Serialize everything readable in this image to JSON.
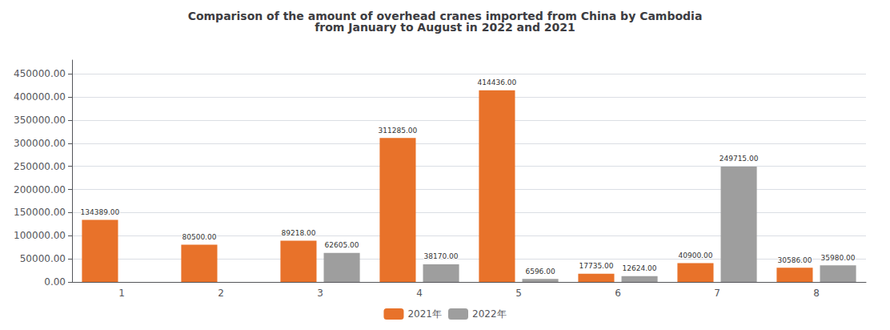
{
  "chart_data": {
    "type": "bar",
    "title": "Comparison of the amount of overhead cranes imported from China by Cambodia\nfrom January to August in 2022 and 2021",
    "categories": [
      "1",
      "2",
      "3",
      "4",
      "5",
      "6",
      "7",
      "8"
    ],
    "series": [
      {
        "name": "2021年",
        "color": "#E8722A",
        "values": [
          134389.0,
          80500.0,
          89218.0,
          311285.0,
          414436.0,
          17735.0,
          40900.0,
          30586.0
        ],
        "value_labels": [
          "134389.00",
          "80500.00",
          "89218.00",
          "311285.00",
          "414436.00",
          "17735.00",
          "40900.00",
          "30586.00"
        ]
      },
      {
        "name": "2022年",
        "color": "#9E9E9E",
        "values": [
          0,
          0,
          62605.0,
          38170.0,
          6596.0,
          12624.0,
          249715.0,
          35980.0
        ],
        "value_labels": [
          null,
          null,
          "62605.00",
          "38170.00",
          "6596.00",
          "12624.00",
          "249715.00",
          "35980.00"
        ]
      }
    ],
    "ylim": [
      0,
      480000
    ],
    "yticks": [
      {
        "value": 0,
        "label": "0.00"
      },
      {
        "value": 50000,
        "label": "50000.00"
      },
      {
        "value": 100000,
        "label": "100000.00"
      },
      {
        "value": 150000,
        "label": "150000.00"
      },
      {
        "value": 200000,
        "label": "200000.00"
      },
      {
        "value": 250000,
        "label": "250000.00"
      },
      {
        "value": 300000,
        "label": "300000.00"
      },
      {
        "value": 350000,
        "label": "350000.00"
      },
      {
        "value": 400000,
        "label": "400000.00"
      },
      {
        "value": 450000,
        "label": "450000.00"
      }
    ],
    "grid": true,
    "legend": "bottom",
    "data_labels": true
  }
}
